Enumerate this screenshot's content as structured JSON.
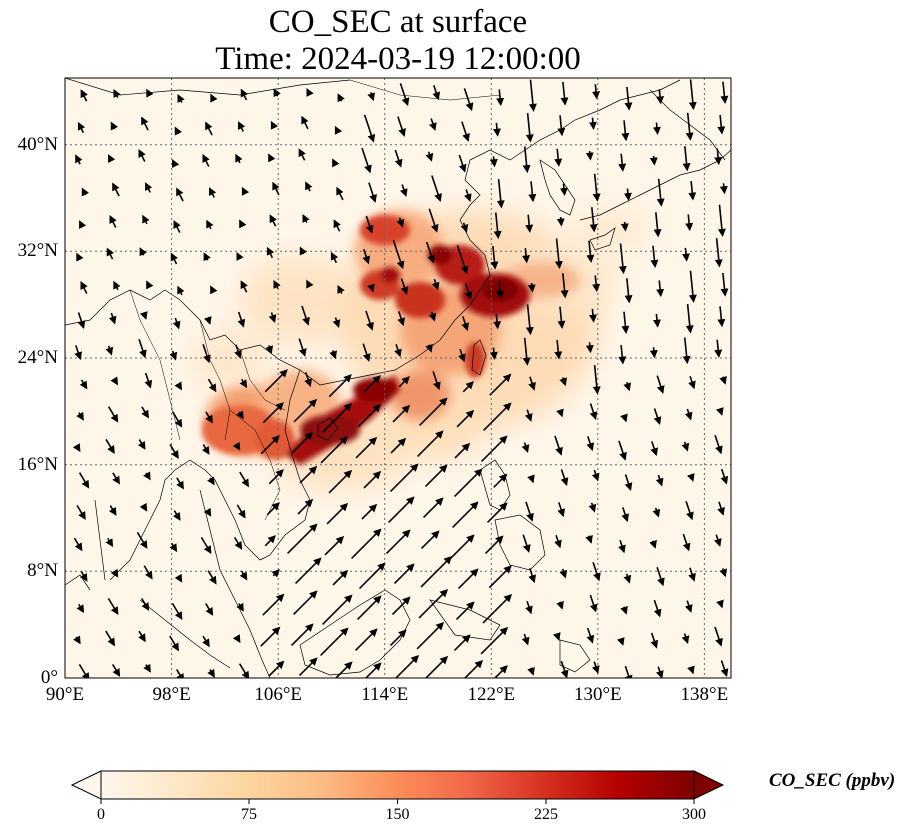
{
  "title": {
    "line1": "CO_SEC at surface",
    "line2": "Time: 2024-03-19 12:00:00"
  },
  "map": {
    "lon_range": [
      90,
      140
    ],
    "lat_range": [
      0,
      45
    ],
    "x_ticks": [
      "90°E",
      "98°E",
      "106°E",
      "114°E",
      "122°E",
      "130°E",
      "138°E"
    ],
    "y_ticks": [
      "0°",
      "8°N",
      "16°N",
      "24°N",
      "32°N",
      "40°N"
    ],
    "gridlines": true,
    "colormap": "OrRd",
    "field_description": "CO_SEC surface concentration plume over southern and eastern China with wind vectors"
  },
  "colorbar": {
    "label": "CO_SEC (ppbv)",
    "ticks": [
      "0",
      "75",
      "150",
      "225",
      "300"
    ],
    "range": [
      0,
      300
    ],
    "extend": "both",
    "colors": [
      "#fff7ec",
      "#fee8c8",
      "#fdd49e",
      "#fdbb84",
      "#fc8d59",
      "#ef6548",
      "#d7301f",
      "#b30000",
      "#7f0000"
    ]
  }
}
